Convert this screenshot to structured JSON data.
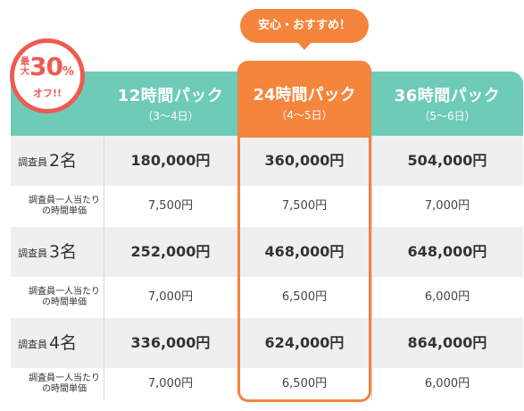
{
  "bubble": "安心・おすすめ！",
  "badge": {
    "top1": "最",
    "top2": "大",
    "number": "30",
    "percent": "%",
    "bottom": "オフ!!"
  },
  "columns": [
    {
      "title": "12時間パック",
      "sub": "（3〜4日）"
    },
    {
      "title": "24時間パック",
      "sub": "（4〜5日）"
    },
    {
      "title": "36時間パック",
      "sub": "（5〜6日）"
    }
  ],
  "rows": [
    {
      "label_prefix": "調査員",
      "label_num": "2名",
      "prices": [
        "180,000円",
        "360,000円",
        "504,000円"
      ],
      "sub_label_1": "調査員一人当たり",
      "sub_label_2": "の時間単価",
      "unit": [
        "7,500円",
        "7,500円",
        "7,000円"
      ]
    },
    {
      "label_prefix": "調査員",
      "label_num": "3名",
      "prices": [
        "252,000円",
        "468,000円",
        "648,000円"
      ],
      "sub_label_1": "調査員一人当たり",
      "sub_label_2": "の時間単価",
      "unit": [
        "7,000円",
        "6,500円",
        "6,000円"
      ]
    },
    {
      "label_prefix": "調査員",
      "label_num": "4名",
      "prices": [
        "336,000円",
        "624,000円",
        "864,000円"
      ],
      "sub_label_1": "調査員一人当たり",
      "sub_label_2": "の時間単価",
      "unit": [
        "7,000円",
        "6,500円",
        "6,000円"
      ]
    }
  ],
  "colors": {
    "teal": "#6ecbb8",
    "orange": "#f5843d",
    "red": "#ee5a52"
  }
}
